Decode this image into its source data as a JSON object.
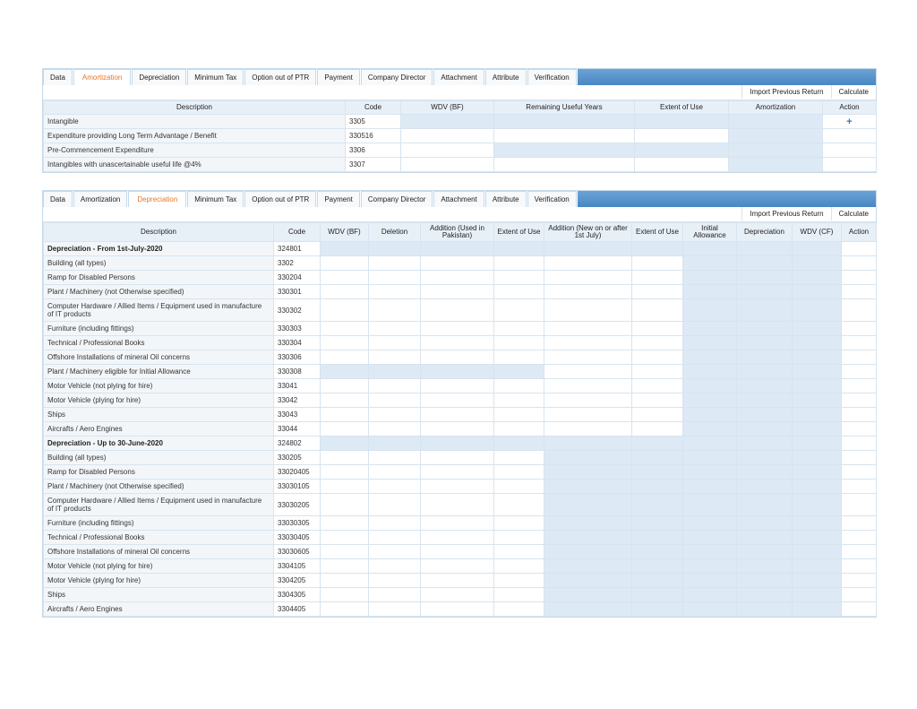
{
  "tabs": [
    "Data",
    "Amortization",
    "Depreciation",
    "Minimum Tax",
    "Option out of PTR",
    "Payment",
    "Company Director",
    "Attachment",
    "Attribute",
    "Verification"
  ],
  "toolbar": {
    "import_label": "Import Previous Return",
    "calculate_label": "Calculate"
  },
  "amortization": {
    "headers": [
      "Description",
      "Code",
      "WDV (BF)",
      "Remaining Useful Years",
      "Extent of Use",
      "Amortization",
      "Action"
    ],
    "rows": [
      {
        "desc": "Intangible",
        "code": "3305",
        "action": "+"
      },
      {
        "desc": "Expenditure providing Long Term Advantage / Benefit",
        "code": "330516"
      },
      {
        "desc": "Pre-Commencement Expenditure",
        "code": "3306"
      },
      {
        "desc": "Intangibles with unascertainable useful life @4%",
        "code": "3307"
      }
    ]
  },
  "depreciation": {
    "headers": [
      "Description",
      "Code",
      "WDV (BF)",
      "Deletion",
      "Addition (Used in Pakistan)",
      "Extent of Use",
      "Addition (New on or after 1st July)",
      "Extent of Use",
      "Initial Allowance",
      "Depreciation",
      "WDV (CF)",
      "Action"
    ],
    "rows": [
      {
        "desc": "Depreciation - From 1st-July-2020",
        "code": "324801",
        "bold": true
      },
      {
        "desc": "Building (all types)",
        "code": "3302"
      },
      {
        "desc": "Ramp for Disabled Persons",
        "code": "330204"
      },
      {
        "desc": "Plant / Machinery (not Otherwise specified)",
        "code": "330301"
      },
      {
        "desc": "Computer Hardware / Allied Items / Equipment used in manufacture of IT products",
        "code": "330302",
        "tall": true
      },
      {
        "desc": "Furniture (including fittings)",
        "code": "330303"
      },
      {
        "desc": "Technical / Professional Books",
        "code": "330304"
      },
      {
        "desc": "Offshore Installations of mineral Oil concerns",
        "code": "330306"
      },
      {
        "desc": "Plant / Machinery eligible for Initial Allowance",
        "code": "330308"
      },
      {
        "desc": "Motor Vehicle (not plying for hire)",
        "code": "33041"
      },
      {
        "desc": "Motor Vehicle (plying for hire)",
        "code": "33042"
      },
      {
        "desc": "Ships",
        "code": "33043"
      },
      {
        "desc": "Aircrafts / Aero Engines",
        "code": "33044"
      },
      {
        "desc": "Depreciation - Up to 30-June-2020",
        "code": "324802",
        "bold": true
      },
      {
        "desc": "Building (all types)",
        "code": "330205"
      },
      {
        "desc": "Ramp for Disabled Persons",
        "code": "33020405"
      },
      {
        "desc": "Plant / Machinery (not Otherwise specified)",
        "code": "33030105"
      },
      {
        "desc": "Computer Hardware / Allied Items / Equipment used in manufacture of IT products",
        "code": "33030205",
        "tall": true
      },
      {
        "desc": "Furniture (including fittings)",
        "code": "33030305"
      },
      {
        "desc": "Technical / Professional Books",
        "code": "33030405"
      },
      {
        "desc": "Offshore Installations of mineral Oil concerns",
        "code": "33030605"
      },
      {
        "desc": "Motor Vehicle (not plying for hire)",
        "code": "3304105"
      },
      {
        "desc": "Motor Vehicle (plying for hire)",
        "code": "3304205"
      },
      {
        "desc": "Ships",
        "code": "3304305"
      },
      {
        "desc": "Aircrafts / Aero Engines",
        "code": "3304405"
      }
    ]
  },
  "colors": {
    "active_tab": "#e87722",
    "bar": "#4a86c2",
    "disabled_cell": "#dde9f5",
    "plus": "#2b7bc4"
  }
}
